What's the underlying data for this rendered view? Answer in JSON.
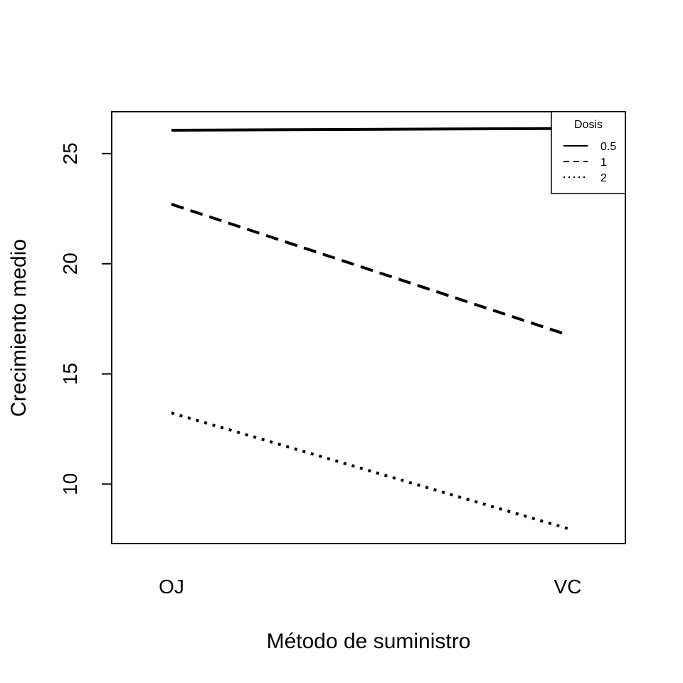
{
  "chart_data": {
    "type": "line",
    "title": "",
    "xlabel": "Método de suministro",
    "ylabel": "Crecimiento medio",
    "categories": [
      "OJ",
      "VC"
    ],
    "ylim": [
      7.3,
      26.9
    ],
    "yticks": [
      10,
      15,
      20,
      25
    ],
    "grid": false,
    "legend": {
      "title": "Dosis",
      "position": "top-right"
    },
    "series": [
      {
        "name": "0.5",
        "values": [
          26.06,
          26.14
        ],
        "line_style": "solid",
        "color": "#000000"
      },
      {
        "name": "1",
        "values": [
          22.7,
          16.77
        ],
        "line_style": "dashed",
        "color": "#000000"
      },
      {
        "name": "2",
        "values": [
          13.23,
          7.98
        ],
        "line_style": "dotted",
        "color": "#000000"
      }
    ]
  }
}
